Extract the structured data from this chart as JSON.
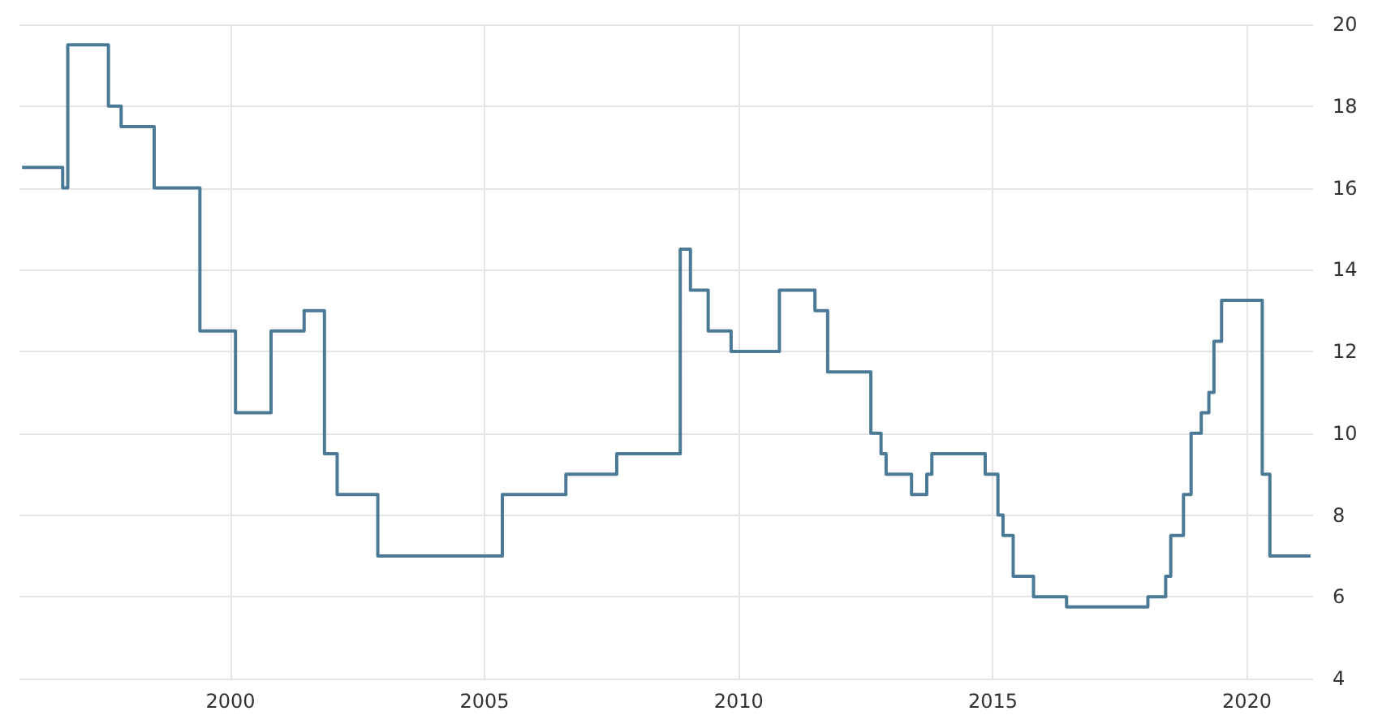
{
  "chart_data": {
    "type": "step",
    "x": [
      1995.9,
      1996.7,
      1996.8,
      1997.6,
      1997.85,
      1998.5,
      1999.4,
      2000.1,
      2000.8,
      2001.45,
      2001.85,
      2002.1,
      2002.9,
      2005.35,
      2006.6,
      2007.6,
      2008.85,
      2009.05,
      2009.4,
      2009.85,
      2010.8,
      2011.5,
      2011.75,
      2012.6,
      2012.8,
      2012.9,
      2013.4,
      2013.7,
      2013.8,
      2014.85,
      2015.1,
      2015.2,
      2015.4,
      2015.8,
      2016.45,
      2018.05,
      2018.4,
      2018.5,
      2018.75,
      2018.9,
      2019.1,
      2019.25,
      2019.35,
      2019.5,
      2020.3,
      2020.45,
      2021.25
    ],
    "series": [
      {
        "color": "#4a7a96",
        "values": [
          16.5,
          16,
          19.5,
          18,
          17.5,
          16,
          12.5,
          10.5,
          12.5,
          13,
          9.5,
          8.5,
          7,
          8.5,
          9,
          9.5,
          14.5,
          13.5,
          12.5,
          12,
          13.5,
          13,
          11.5,
          10,
          9.5,
          9,
          8.5,
          9,
          9.5,
          9,
          8,
          7.5,
          6.5,
          6,
          5.75,
          6,
          6.5,
          7.5,
          8.5,
          10,
          10.5,
          11,
          12.25,
          13.25,
          9,
          7,
          7
        ]
      }
    ],
    "xlim": [
      1995.85,
      2021.3
    ],
    "xticks": [
      2000,
      2005,
      2010,
      2015,
      2020
    ],
    "ylim": [
      4,
      20
    ],
    "yticks": [
      4,
      6,
      8,
      10,
      12,
      14,
      16,
      18,
      20
    ],
    "grid": true,
    "marker": "none",
    "line_style": "solid"
  }
}
